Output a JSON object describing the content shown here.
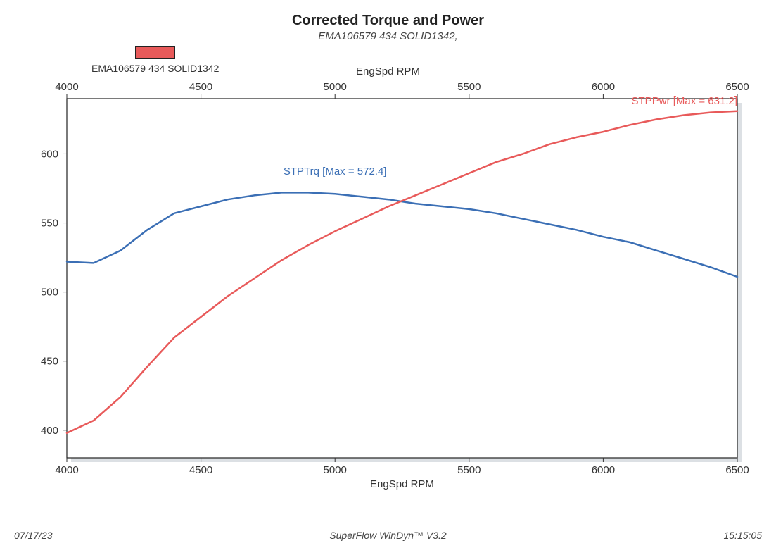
{
  "title": "Corrected Torque and Power",
  "subtitle": "EMA106579 434 SOLID1342,",
  "legend": {
    "swatch_color": "#e85a5a",
    "label": "EMA106579 434 SOLID1342"
  },
  "top_axis_label": "EngSpd RPM",
  "bottom_axis_label": "EngSpd RPM",
  "footer": {
    "date": "07/17/23",
    "software": "SuperFlow WinDyn™ V3.2",
    "time": "15:15:05"
  },
  "chart": {
    "type": "line",
    "background_color": "#ffffff",
    "plot_border_color": "#222222",
    "shadow_color": "#9aa5b1",
    "grid_color": "#e0e0e0",
    "x": {
      "min": 4000,
      "max": 6500,
      "ticks": [
        4000,
        4500,
        5000,
        5500,
        6000,
        6500
      ]
    },
    "y": {
      "min": 380,
      "max": 640,
      "ticks": [
        400,
        450,
        500,
        550,
        600
      ]
    },
    "series": [
      {
        "name": "STPTrq",
        "label": "STPTrq [Max = 572.4]",
        "color": "#3b6fb5",
        "line_width": 2.5,
        "label_x": 5000,
        "label_y": 585,
        "label_anchor": "middle",
        "points": [
          [
            4000,
            522
          ],
          [
            4100,
            521
          ],
          [
            4200,
            530
          ],
          [
            4300,
            545
          ],
          [
            4400,
            557
          ],
          [
            4500,
            562
          ],
          [
            4600,
            567
          ],
          [
            4700,
            570
          ],
          [
            4800,
            572
          ],
          [
            4900,
            572
          ],
          [
            5000,
            571
          ],
          [
            5100,
            569
          ],
          [
            5200,
            567
          ],
          [
            5300,
            564
          ],
          [
            5400,
            562
          ],
          [
            5500,
            560
          ],
          [
            5600,
            557
          ],
          [
            5700,
            553
          ],
          [
            5800,
            549
          ],
          [
            5900,
            545
          ],
          [
            6000,
            540
          ],
          [
            6100,
            536
          ],
          [
            6200,
            530
          ],
          [
            6300,
            524
          ],
          [
            6400,
            518
          ],
          [
            6500,
            511
          ]
        ]
      },
      {
        "name": "STPPwr",
        "label": "STPPwr [Max = 631.2]",
        "color": "#e85a5a",
        "line_width": 2.5,
        "label_x": 6500,
        "label_y": 636,
        "label_anchor": "end",
        "points": [
          [
            4000,
            398
          ],
          [
            4100,
            407
          ],
          [
            4200,
            424
          ],
          [
            4300,
            446
          ],
          [
            4400,
            467
          ],
          [
            4500,
            482
          ],
          [
            4600,
            497
          ],
          [
            4700,
            510
          ],
          [
            4800,
            523
          ],
          [
            4900,
            534
          ],
          [
            5000,
            544
          ],
          [
            5100,
            553
          ],
          [
            5200,
            562
          ],
          [
            5300,
            570
          ],
          [
            5400,
            578
          ],
          [
            5500,
            586
          ],
          [
            5600,
            594
          ],
          [
            5700,
            600
          ],
          [
            5800,
            607
          ],
          [
            5900,
            612
          ],
          [
            6000,
            616
          ],
          [
            6100,
            621
          ],
          [
            6200,
            625
          ],
          [
            6300,
            628
          ],
          [
            6400,
            630
          ],
          [
            6500,
            631
          ]
        ]
      }
    ]
  }
}
